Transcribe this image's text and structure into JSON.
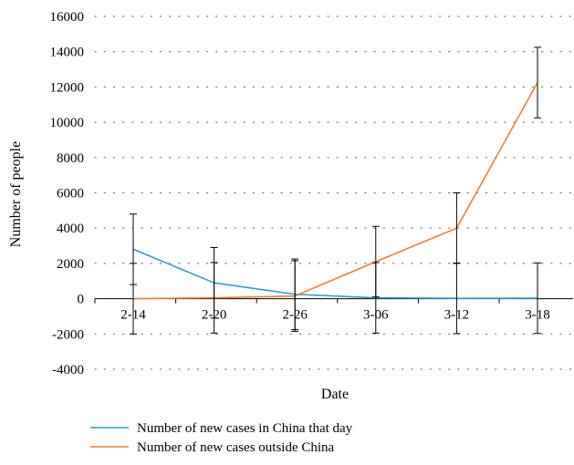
{
  "chart_data": {
    "type": "line",
    "title": "",
    "xlabel": "Date",
    "ylabel": "Number of people",
    "categories": [
      "2-14",
      "2-20",
      "2-26",
      "3-06",
      "3-12",
      "3-18"
    ],
    "ylim": [
      -4000,
      16000
    ],
    "yticks": [
      -4000,
      -2000,
      0,
      2000,
      4000,
      6000,
      8000,
      10000,
      12000,
      14000,
      16000
    ],
    "grid": "dotted-horizontal",
    "legend_position": "bottom",
    "error_bar": 2000,
    "series": [
      {
        "name": "Number of new cases in China that day",
        "color": "#2b9bd6",
        "values": [
          2800,
          900,
          250,
          50,
          20,
          30
        ]
      },
      {
        "name": "Number of new cases outside China",
        "color": "#f07f2e",
        "values": [
          0,
          50,
          150,
          2100,
          4000,
          12250
        ]
      }
    ]
  }
}
